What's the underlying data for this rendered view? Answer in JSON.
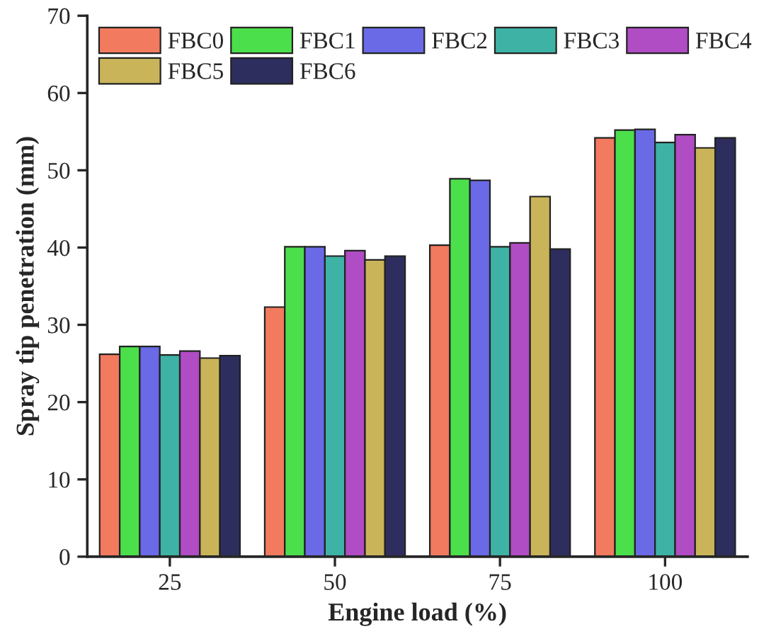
{
  "chart_data": {
    "type": "bar",
    "xlabel": "Engine load (%)",
    "ylabel": "Spray tip penetration (mm)",
    "categories": [
      "25",
      "50",
      "75",
      "100"
    ],
    "series": [
      {
        "name": "FBC0",
        "color": "#f27a5e",
        "values": [
          26.2,
          32.3,
          40.3,
          54.2
        ]
      },
      {
        "name": "FBC1",
        "color": "#4cdf4c",
        "values": [
          27.2,
          40.1,
          48.9,
          55.2
        ]
      },
      {
        "name": "FBC2",
        "color": "#6a6ae6",
        "values": [
          27.2,
          40.1,
          48.7,
          55.3
        ]
      },
      {
        "name": "FBC3",
        "color": "#3fb2a6",
        "values": [
          26.1,
          38.9,
          40.1,
          53.6
        ]
      },
      {
        "name": "FBC4",
        "color": "#b04cc4",
        "values": [
          26.6,
          39.6,
          40.6,
          54.6
        ]
      },
      {
        "name": "FBC5",
        "color": "#c9b45a",
        "values": [
          25.7,
          38.4,
          46.6,
          52.9
        ]
      },
      {
        "name": "FBC6",
        "color": "#2e2e5e",
        "values": [
          26.0,
          38.9,
          39.8,
          54.2
        ]
      }
    ],
    "ylim": [
      0,
      70
    ],
    "yticks": [
      0,
      10,
      20,
      30,
      40,
      50,
      60,
      70
    ],
    "grid": false,
    "legend": "top left"
  }
}
